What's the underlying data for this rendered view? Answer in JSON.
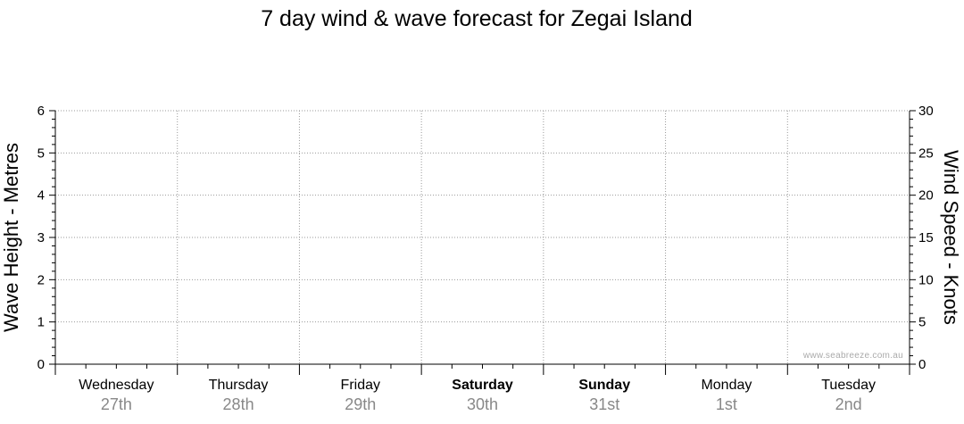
{
  "chart_data": {
    "type": "line",
    "title": "7 day wind & wave forecast for Zegai Island",
    "ylabel_left": "Wave Height - Metres",
    "ylabel_right": "Wind Speed - Knots",
    "ylim_left": [
      0,
      6
    ],
    "ylim_right": [
      0,
      30
    ],
    "yticks_left": [
      "0",
      "1",
      "2",
      "3",
      "4",
      "5",
      "6"
    ],
    "yticks_right": [
      "0",
      "5",
      "10",
      "15",
      "20",
      "25",
      "30"
    ],
    "grid": true,
    "days": [
      {
        "day": "Wednesday",
        "date": "27th",
        "bold": false
      },
      {
        "day": "Thursday",
        "date": "28th",
        "bold": false
      },
      {
        "day": "Friday",
        "date": "29th",
        "bold": false
      },
      {
        "day": "Saturday",
        "date": "30th",
        "bold": true
      },
      {
        "day": "Sunday",
        "date": "31st",
        "bold": true
      },
      {
        "day": "Monday",
        "date": "1st",
        "bold": false
      },
      {
        "day": "Tuesday",
        "date": "2nd",
        "bold": false
      }
    ],
    "series": []
  },
  "watermark": "www.seabreeze.com.au"
}
